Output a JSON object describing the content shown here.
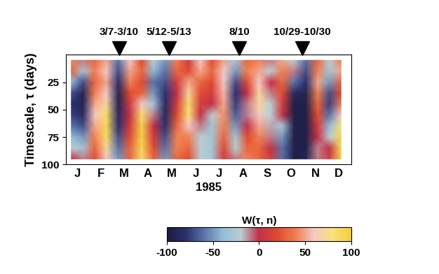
{
  "chart_data": {
    "type": "heatmap",
    "xlabel": "1985",
    "ylabel": "Timescale, τ (days)",
    "xlim": [
      0,
      365
    ],
    "ylim": [
      100,
      0
    ],
    "xticks": [
      {
        "value": 15,
        "label": "J"
      },
      {
        "value": 45,
        "label": "F"
      },
      {
        "value": 74,
        "label": "M"
      },
      {
        "value": 105,
        "label": "A"
      },
      {
        "value": 135,
        "label": "M"
      },
      {
        "value": 166,
        "label": "J"
      },
      {
        "value": 196,
        "label": "J"
      },
      {
        "value": 227,
        "label": "A"
      },
      {
        "value": 258,
        "label": "S"
      },
      {
        "value": 288,
        "label": "O"
      },
      {
        "value": 319,
        "label": "N"
      },
      {
        "value": 349,
        "label": "D"
      }
    ],
    "yticks": [
      25,
      50,
      75,
      100
    ],
    "x": [
      7,
      22,
      37,
      52,
      67,
      82,
      97,
      112,
      127,
      142,
      157,
      172,
      187,
      202,
      217,
      232,
      247,
      262,
      277,
      292,
      307,
      322,
      337,
      352
    ],
    "y": [
      5,
      15,
      25,
      35,
      45,
      55,
      65,
      75,
      85,
      95
    ],
    "cells": [
      [
        40,
        -10,
        30,
        50,
        -60,
        60,
        20,
        -20,
        -50,
        40,
        10,
        60,
        20,
        50,
        -30,
        30,
        40,
        -10,
        50,
        -20,
        -60,
        30,
        -20,
        40
      ],
      [
        30,
        -30,
        40,
        60,
        -70,
        50,
        30,
        -40,
        -60,
        30,
        20,
        50,
        30,
        60,
        -50,
        40,
        50,
        -20,
        40,
        -10,
        -70,
        40,
        -30,
        50
      ],
      [
        -40,
        -70,
        30,
        50,
        -80,
        40,
        20,
        -60,
        -70,
        10,
        50,
        30,
        20,
        60,
        -70,
        20,
        60,
        0,
        30,
        -60,
        -80,
        50,
        -50,
        30
      ],
      [
        -70,
        -90,
        40,
        60,
        -90,
        20,
        30,
        -50,
        -80,
        0,
        70,
        20,
        10,
        55,
        -80,
        0,
        70,
        -10,
        20,
        -85,
        -90,
        40,
        -70,
        20
      ],
      [
        -80,
        -90,
        50,
        70,
        -90,
        10,
        60,
        -30,
        -85,
        10,
        85,
        10,
        0,
        50,
        -75,
        -10,
        70,
        -20,
        10,
        -95,
        -95,
        30,
        -75,
        40
      ],
      [
        -75,
        -85,
        60,
        85,
        -85,
        0,
        85,
        -10,
        -85,
        20,
        80,
        0,
        -20,
        45,
        -65,
        -10,
        60,
        -20,
        0,
        -95,
        -95,
        20,
        -60,
        60
      ],
      [
        -60,
        -70,
        50,
        90,
        -80,
        10,
        95,
        0,
        -80,
        30,
        60,
        -10,
        -30,
        40,
        -50,
        0,
        50,
        -15,
        -30,
        -95,
        -95,
        10,
        -40,
        80
      ],
      [
        -40,
        -50,
        40,
        85,
        -70,
        20,
        95,
        10,
        -70,
        40,
        40,
        -20,
        -30,
        30,
        -30,
        20,
        40,
        -10,
        -50,
        -95,
        -95,
        0,
        -20,
        90
      ],
      [
        -20,
        -30,
        30,
        70,
        -60,
        30,
        90,
        20,
        -60,
        40,
        30,
        -20,
        -30,
        20,
        -20,
        30,
        30,
        0,
        -60,
        -95,
        -95,
        -10,
        0,
        90
      ],
      [
        0,
        -10,
        20,
        60,
        -50,
        30,
        85,
        30,
        -50,
        30,
        20,
        -20,
        -30,
        10,
        -10,
        40,
        30,
        10,
        -60,
        -95,
        -90,
        -10,
        10,
        95
      ]
    ],
    "colorbar": {
      "label": "W(τ, n)",
      "range": [
        -100,
        100
      ],
      "ticks": [
        -100,
        -50,
        0,
        50,
        100
      ]
    },
    "annotations": [
      {
        "x": 68,
        "text": "3/7-3/10"
      },
      {
        "x": 132,
        "text": "5/12-5/13"
      },
      {
        "x": 222,
        "text": "8/10"
      },
      {
        "x": 302,
        "text": "10/29-10/30"
      }
    ]
  }
}
